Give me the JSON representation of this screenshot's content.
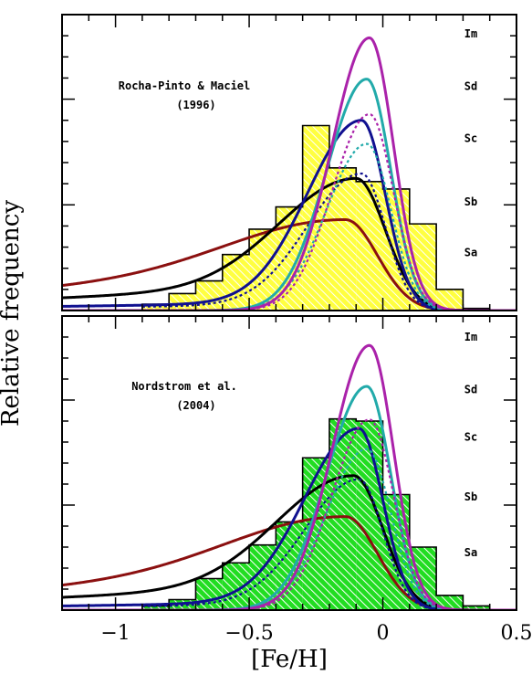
{
  "chart_data": {
    "type": "histogram-with-curves",
    "xlabel": "[Fe/H]",
    "ylabel": "Relative frequency",
    "xlim": [
      -1.2,
      0.5
    ],
    "x_ticks": [
      -1,
      -0.5,
      0,
      0.5
    ],
    "x_tick_labels": [
      "−1",
      "−0.5",
      "0",
      "0.5"
    ],
    "galaxy_types": [
      "Im",
      "Sd",
      "Sc",
      "Sb",
      "Sa"
    ],
    "colors": {
      "top_hist_fill": "#ffff40",
      "bottom_hist_fill": "#22dd22",
      "Im": "#aa22aa",
      "Sd": "#22aaaa",
      "Sc": "#101090",
      "Sb": "#000000",
      "Sa": "#8b1010"
    },
    "panels": [
      {
        "label_line1": "Rocha-Pinto & Maciel",
        "label_line2": "(1996)",
        "ylim": [
          0,
          280
        ],
        "histogram": {
          "bin_edges": [
            -0.9,
            -0.8,
            -0.7,
            -0.6,
            -0.5,
            -0.4,
            -0.3,
            -0.2,
            -0.1,
            0.0,
            0.1,
            0.2,
            0.3,
            0.4
          ],
          "values": [
            6,
            16,
            28,
            53,
            77,
            98,
            175,
            135,
            122,
            115,
            82,
            20,
            2
          ]
        },
        "curves": [
          {
            "name": "Im",
            "peak_x": -0.05,
            "peak_y": 258,
            "left_sigma": 0.14,
            "right_sigma": 0.09,
            "tail": 0
          },
          {
            "name": "Sd",
            "peak_x": -0.06,
            "peak_y": 219,
            "left_sigma": 0.15,
            "right_sigma": 0.09,
            "tail": 0
          },
          {
            "name": "Sc",
            "peak_x": -0.08,
            "peak_y": 180,
            "left_sigma": 0.2,
            "right_sigma": 0.09,
            "tail": 8
          },
          {
            "name": "Sb",
            "peak_x": -0.1,
            "peak_y": 125,
            "left_sigma": 0.28,
            "right_sigma": 0.11,
            "tail": 24
          },
          {
            "name": "Sa",
            "peak_x": -0.14,
            "peak_y": 86,
            "left_sigma": 0.4,
            "right_sigma": 0.12,
            "tail": 42
          }
        ],
        "type_label_y": [
          262,
          212,
          163,
          103,
          55
        ]
      },
      {
        "label_line1": "Nordstrom et al.",
        "label_line2": "(2004)",
        "ylim": [
          0,
          280
        ],
        "histogram": {
          "bin_edges": [
            -0.9,
            -0.8,
            -0.7,
            -0.6,
            -0.5,
            -0.4,
            -0.3,
            -0.2,
            -0.1,
            0.0,
            0.1,
            0.2,
            0.3,
            0.4
          ],
          "values": [
            4,
            10,
            30,
            45,
            62,
            84,
            145,
            182,
            180,
            110,
            60,
            14,
            4
          ]
        },
        "curves": [
          {
            "name": "Im",
            "peak_x": -0.05,
            "peak_y": 252,
            "left_sigma": 0.14,
            "right_sigma": 0.09,
            "tail": 0
          },
          {
            "name": "Sd",
            "peak_x": -0.06,
            "peak_y": 213,
            "left_sigma": 0.15,
            "right_sigma": 0.09,
            "tail": 0
          },
          {
            "name": "Sc",
            "peak_x": -0.09,
            "peak_y": 173,
            "left_sigma": 0.2,
            "right_sigma": 0.09,
            "tail": 8
          },
          {
            "name": "Sb",
            "peak_x": -0.11,
            "peak_y": 128,
            "left_sigma": 0.28,
            "right_sigma": 0.11,
            "tail": 24
          },
          {
            "name": "Sa",
            "peak_x": -0.14,
            "peak_y": 89,
            "left_sigma": 0.4,
            "right_sigma": 0.12,
            "tail": 42
          }
        ],
        "type_label_y": [
          260,
          210,
          165,
          108,
          55
        ]
      }
    ]
  }
}
